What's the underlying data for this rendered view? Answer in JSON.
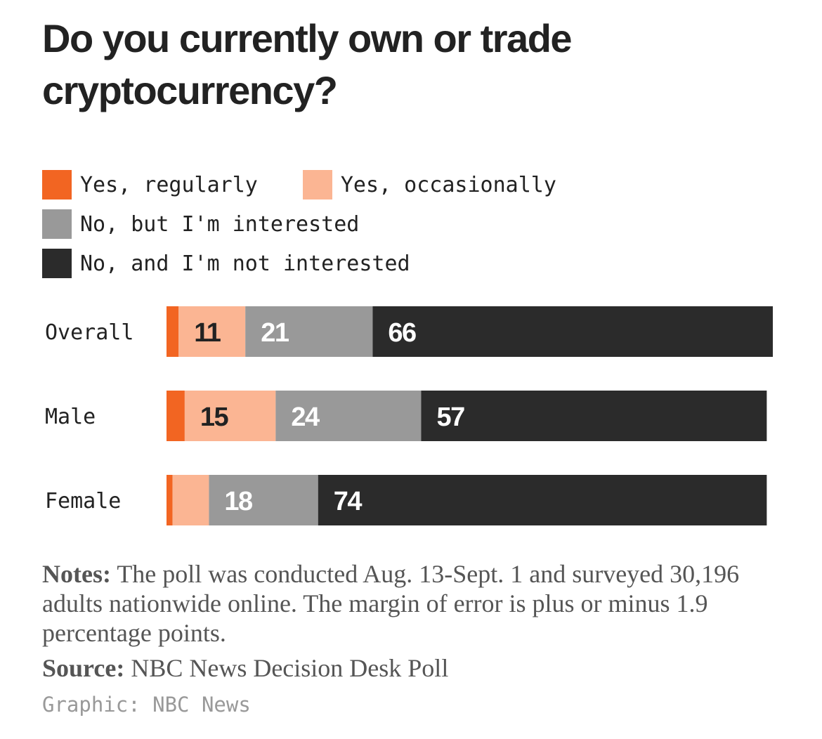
{
  "title": "Do you currently own or trade cryptocurrency?",
  "legend": [
    {
      "label": "Yes, regularly",
      "color": "#f26522"
    },
    {
      "label": "Yes, occasionally",
      "color": "#fbb593"
    },
    {
      "label": "No, but I'm interested",
      "color": "#999999"
    },
    {
      "label": "No, and I'm not interested",
      "color": "#2b2b2b"
    }
  ],
  "chart_data": {
    "type": "bar",
    "orientation": "horizontal",
    "stacked": true,
    "categories": [
      "Overall",
      "Male",
      "Female"
    ],
    "series": [
      {
        "name": "Yes, regularly",
        "values": [
          2,
          3,
          1
        ],
        "color": "#f26522"
      },
      {
        "name": "Yes, occasionally",
        "values": [
          11,
          15,
          6
        ],
        "color": "#fbb593"
      },
      {
        "name": "No, but I'm interested",
        "values": [
          21,
          24,
          18
        ],
        "color": "#999999"
      },
      {
        "name": "No, and I'm not interested",
        "values": [
          66,
          57,
          74
        ],
        "color": "#2b2b2b"
      }
    ],
    "data_labels": [
      [
        null,
        "11",
        "21",
        "66"
      ],
      [
        null,
        "15",
        "24",
        "57"
      ],
      [
        null,
        null,
        "18",
        "74"
      ]
    ],
    "xlim": [
      0,
      100
    ],
    "grid": false,
    "legend_position": "top-left"
  },
  "notes": {
    "label": "Notes:",
    "text": " The poll was conducted Aug. 13-Sept. 1 and surveyed 30,196 adults nationwide online. The margin of error is plus or minus 1.9 percentage points."
  },
  "source": {
    "label": "Source:",
    "text": " NBC News Decision Desk Poll"
  },
  "credit": "Graphic: NBC News"
}
